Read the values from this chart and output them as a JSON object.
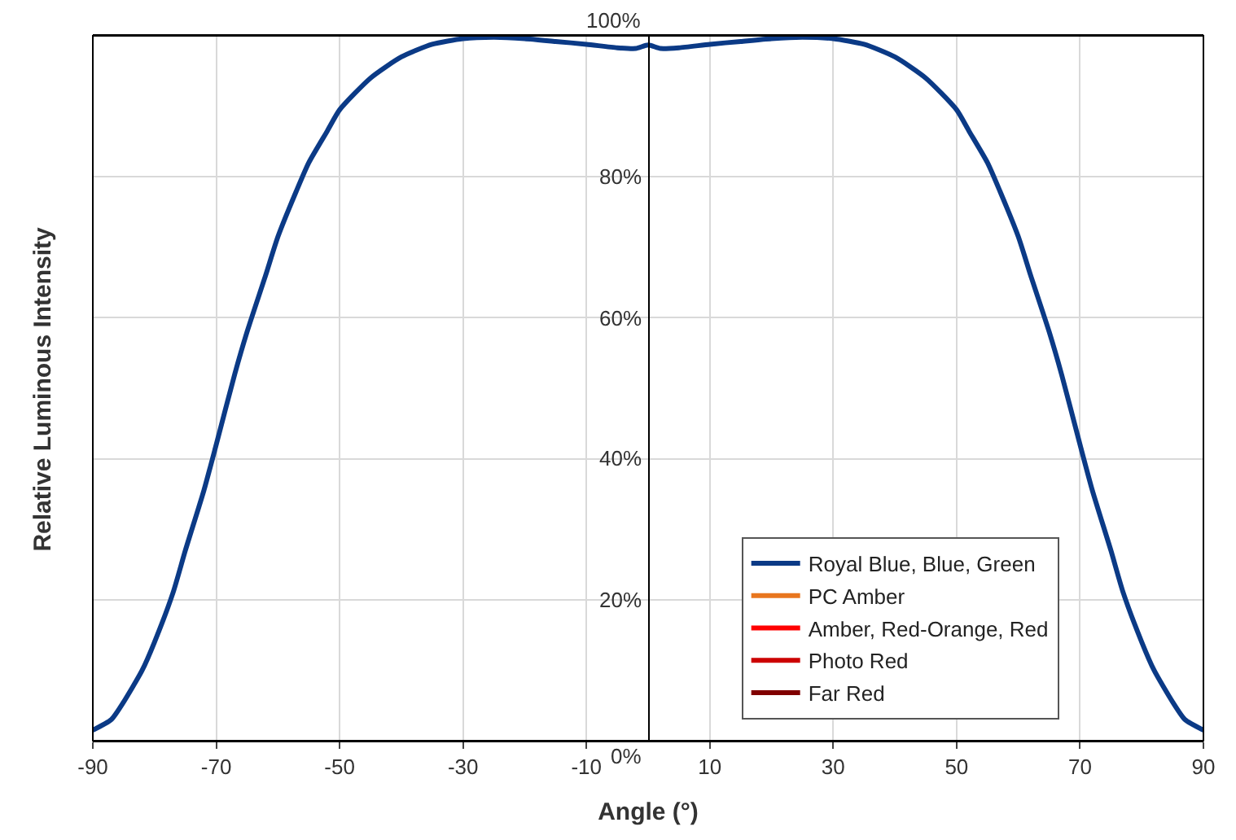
{
  "chart_data": {
    "type": "line",
    "xlabel": "Angle (°)",
    "ylabel": "Relative Luminous Intensity",
    "xlim": [
      -90,
      90
    ],
    "xticks": [
      -90,
      -70,
      -50,
      -30,
      -10,
      10,
      30,
      50,
      70,
      90
    ],
    "ylim": [
      0,
      1
    ],
    "yticks": [
      {
        "value": 0,
        "label": "0%"
      },
      {
        "value": 0.2,
        "label": "20%"
      },
      {
        "value": 0.4,
        "label": "40%"
      },
      {
        "value": 0.6,
        "label": "60%"
      },
      {
        "value": 0.8,
        "label": "80%"
      },
      {
        "value": 1,
        "label": "100%"
      }
    ],
    "grid": true,
    "legend": "bottom right",
    "marker": "none",
    "line_style": "solid",
    "x": [
      -90,
      -87,
      -85,
      -82,
      -80,
      -77,
      -75,
      -72,
      -70,
      -67,
      -65,
      -62,
      -60,
      -57,
      -55,
      -52,
      -50,
      -45,
      -40,
      -35,
      -30,
      -25,
      -20,
      -15,
      -10,
      -5,
      -2,
      0,
      2,
      5,
      10,
      15,
      20,
      25,
      30,
      35,
      40,
      45,
      50,
      52,
      55,
      57,
      60,
      62,
      65,
      67,
      70,
      72,
      75,
      77,
      80,
      82,
      85,
      87,
      90
    ],
    "series": [
      {
        "name": "Royal Blue, Blue, Green",
        "color": "#0b3a86",
        "values": [
          0.015,
          0.03,
          0.055,
          0.1,
          0.14,
          0.21,
          0.27,
          0.355,
          0.42,
          0.52,
          0.58,
          0.66,
          0.715,
          0.78,
          0.82,
          0.865,
          0.895,
          0.94,
          0.97,
          0.988,
          0.996,
          0.998,
          0.996,
          0.992,
          0.988,
          0.983,
          0.982,
          0.987,
          0.982,
          0.983,
          0.988,
          0.992,
          0.996,
          0.998,
          0.996,
          0.988,
          0.97,
          0.94,
          0.895,
          0.865,
          0.82,
          0.78,
          0.715,
          0.66,
          0.58,
          0.52,
          0.42,
          0.355,
          0.27,
          0.21,
          0.14,
          0.1,
          0.055,
          0.03,
          0.015
        ]
      },
      {
        "name": "PC Amber",
        "color": "#e8761e",
        "values": [
          null,
          null,
          null,
          null,
          null,
          null,
          null,
          null,
          null,
          null,
          null,
          null,
          null,
          null,
          null,
          null,
          null,
          null,
          null,
          null,
          null,
          null,
          null,
          null,
          null,
          null,
          null,
          null,
          null,
          null,
          null,
          null,
          null,
          null,
          null,
          null,
          null,
          null,
          null,
          null,
          null,
          null,
          null,
          null,
          null,
          null,
          null,
          null,
          null,
          null,
          null,
          null,
          null,
          null,
          null
        ]
      },
      {
        "name": "Amber, Red-Orange, Red",
        "color": "#ff0000",
        "values": [
          null,
          null,
          null,
          null,
          null,
          null,
          null,
          null,
          null,
          null,
          null,
          null,
          null,
          null,
          null,
          null,
          null,
          null,
          null,
          null,
          null,
          null,
          null,
          null,
          null,
          null,
          null,
          null,
          null,
          null,
          null,
          null,
          null,
          null,
          null,
          null,
          null,
          null,
          null,
          null,
          null,
          null,
          null,
          null,
          null,
          null,
          null,
          null,
          null,
          null,
          null,
          null,
          null,
          null,
          null
        ]
      },
      {
        "name": "Photo Red",
        "color": "#cc0000",
        "values": [
          null,
          null,
          null,
          null,
          null,
          null,
          null,
          null,
          null,
          null,
          null,
          null,
          null,
          null,
          null,
          null,
          null,
          null,
          null,
          null,
          null,
          null,
          null,
          null,
          null,
          null,
          null,
          null,
          null,
          null,
          null,
          null,
          null,
          null,
          null,
          null,
          null,
          null,
          null,
          null,
          null,
          null,
          null,
          null,
          null,
          null,
          null,
          null,
          null,
          null,
          null,
          null,
          null,
          null,
          null
        ]
      },
      {
        "name": "Far Red",
        "color": "#800000",
        "values": [
          null,
          null,
          null,
          null,
          null,
          null,
          null,
          null,
          null,
          null,
          null,
          null,
          null,
          null,
          null,
          null,
          null,
          null,
          null,
          null,
          null,
          null,
          null,
          null,
          null,
          null,
          null,
          null,
          null,
          null,
          null,
          null,
          null,
          null,
          null,
          null,
          null,
          null,
          null,
          null,
          null,
          null,
          null,
          null,
          null,
          null,
          null,
          null,
          null,
          null,
          null,
          null,
          null,
          null,
          null
        ]
      }
    ]
  }
}
